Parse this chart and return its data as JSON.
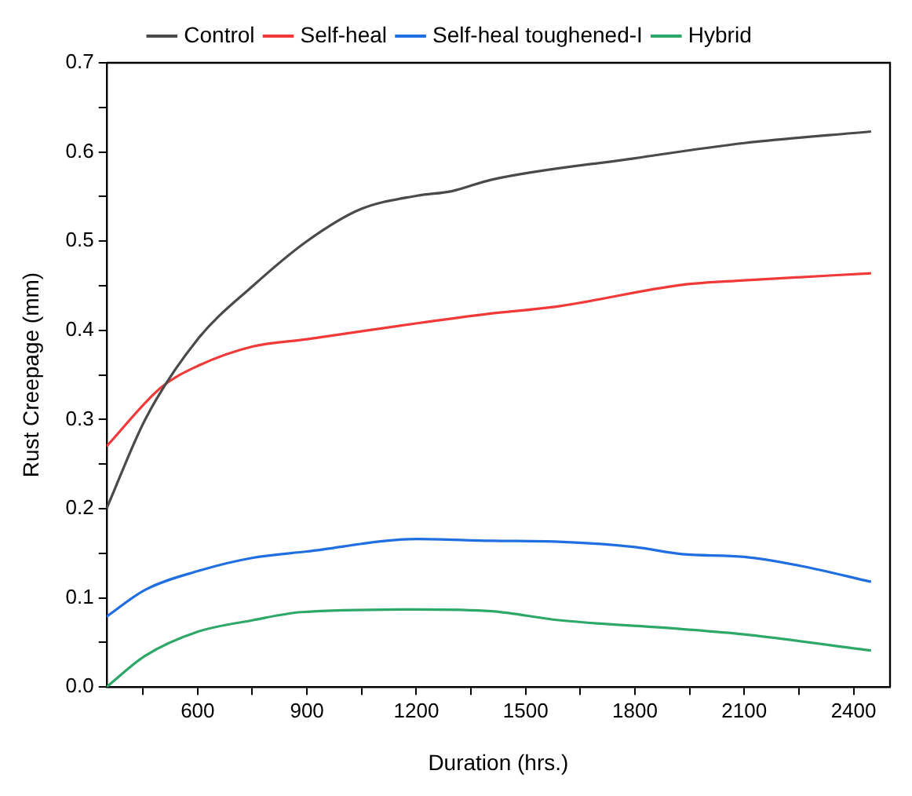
{
  "chart_data": {
    "type": "line",
    "xlabel": "Duration (hrs.)",
    "ylabel": "Rust Creepage (mm)",
    "xlim": [
      350,
      2500
    ],
    "ylim": [
      0,
      0.7
    ],
    "xticks": [
      {
        "value": 450,
        "label": null
      },
      600,
      {
        "value": 750,
        "label": null
      },
      900,
      {
        "value": 1050,
        "label": null
      },
      1200,
      {
        "value": 1350,
        "label": null
      },
      1500,
      {
        "value": 1650,
        "label": null
      },
      1800,
      {
        "value": 1950,
        "label": null
      },
      2100,
      {
        "value": 2250,
        "label": null
      },
      2400
    ],
    "yticks": [
      {
        "value": 0,
        "label": "0.0"
      },
      {
        "value": 0.05,
        "label": null
      },
      0.1,
      {
        "value": 0.15,
        "label": null
      },
      0.2,
      {
        "value": 0.25,
        "label": null
      },
      0.3,
      {
        "value": 0.35,
        "label": null
      },
      0.4,
      {
        "value": 0.45,
        "label": null
      },
      0.5,
      {
        "value": 0.55,
        "label": null
      },
      0.6,
      {
        "value": 0.65,
        "label": null
      },
      0.7
    ],
    "grid": false,
    "legend": "top",
    "marker": "none",
    "line_style": "solid",
    "series": [
      {
        "name": "Control",
        "color": "#4a4a4a",
        "x": [
          350,
          456,
          600,
          752,
          900,
          1048,
          1203,
          1297,
          1407,
          1800,
          2100,
          2448
        ],
        "values": [
          0.2,
          0.3,
          0.39,
          0.45,
          0.5,
          0.536,
          0.551,
          0.556,
          0.569,
          0.593,
          0.61,
          0.623
        ]
      },
      {
        "name": "Self-heal",
        "color": "#f03a3a",
        "x": [
          350,
          500,
          600,
          752,
          900,
          1203,
          1388,
          1591,
          1929,
          2100,
          2448
        ],
        "values": [
          0.27,
          0.336,
          0.36,
          0.382,
          0.39,
          0.408,
          0.418,
          0.427,
          0.451,
          0.456,
          0.464
        ]
      },
      {
        "name": "Self-heal toughened-I",
        "color": "#1f6fe0",
        "x": [
          350,
          456,
          600,
          752,
          900,
          1203,
          1407,
          1591,
          1800,
          1929,
          2100,
          2253,
          2448
        ],
        "values": [
          0.079,
          0.109,
          0.13,
          0.145,
          0.152,
          0.166,
          0.164,
          0.163,
          0.157,
          0.149,
          0.146,
          0.136,
          0.118
        ]
      },
      {
        "name": "Hybrid",
        "color": "#2ea868",
        "x": [
          350,
          456,
          600,
          752,
          885,
          1203,
          1407,
          1591,
          1929,
          2100,
          2448
        ],
        "values": [
          0,
          0.035,
          0.062,
          0.075,
          0.084,
          0.087,
          0.085,
          0.075,
          0.065,
          0.059,
          0.041
        ]
      }
    ]
  }
}
